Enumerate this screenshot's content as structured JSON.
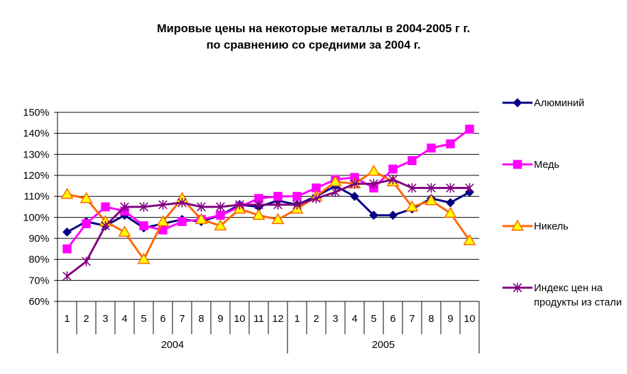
{
  "chart_data": {
    "type": "line",
    "title": [
      "Мировые цены на некоторые металлы в 2004-2005 г г.",
      "по сравнению со средними за 2004 г."
    ],
    "xlabel": "",
    "ylabel": "",
    "ylim": [
      0.6,
      1.5
    ],
    "yticks": [
      "60%",
      "70%",
      "80%",
      "90%",
      "100%",
      "110%",
      "120%",
      "130%",
      "140%",
      "150%"
    ],
    "grid": "horizontal",
    "legend_position": "right",
    "categories": [
      "1",
      "2",
      "3",
      "4",
      "5",
      "6",
      "7",
      "8",
      "9",
      "10",
      "11",
      "12",
      "1",
      "2",
      "3",
      "4",
      "5",
      "6",
      "7",
      "8",
      "9",
      "10"
    ],
    "groups": [
      {
        "label": "2004",
        "count": 12
      },
      {
        "label": "2005",
        "count": 10
      }
    ],
    "series": [
      {
        "name": "Алюминий",
        "color": "#000080",
        "marker": "diamond",
        "values": [
          0.93,
          0.98,
          0.96,
          1.01,
          0.95,
          0.97,
          0.99,
          0.98,
          1.01,
          1.06,
          1.05,
          1.08,
          1.06,
          1.1,
          1.15,
          1.1,
          1.01,
          1.01,
          1.04,
          1.09,
          1.07,
          1.12
        ]
      },
      {
        "name": "Медь",
        "color": "#ff00ff",
        "marker": "square",
        "values": [
          0.85,
          0.97,
          1.05,
          1.03,
          0.96,
          0.94,
          0.98,
          0.99,
          1.01,
          1.05,
          1.09,
          1.1,
          1.1,
          1.14,
          1.18,
          1.19,
          1.14,
          1.23,
          1.27,
          1.33,
          1.35,
          1.42
        ]
      },
      {
        "name": "Никель",
        "color": "#ff6600",
        "marker": "triangle",
        "values": [
          1.11,
          1.09,
          0.98,
          0.93,
          0.8,
          0.98,
          1.09,
          0.99,
          0.96,
          1.04,
          1.01,
          0.99,
          1.04,
          1.1,
          1.17,
          1.16,
          1.22,
          1.17,
          1.05,
          1.08,
          1.02,
          0.89
        ]
      },
      {
        "name": "Индекс цен на продукты из стали",
        "color": "#800080",
        "marker": "star",
        "values": [
          0.72,
          0.79,
          0.96,
          1.05,
          1.05,
          1.06,
          1.07,
          1.05,
          1.05,
          1.06,
          1.06,
          1.06,
          1.06,
          1.09,
          1.12,
          1.16,
          1.16,
          1.18,
          1.14,
          1.14,
          1.14,
          1.14
        ]
      }
    ]
  }
}
